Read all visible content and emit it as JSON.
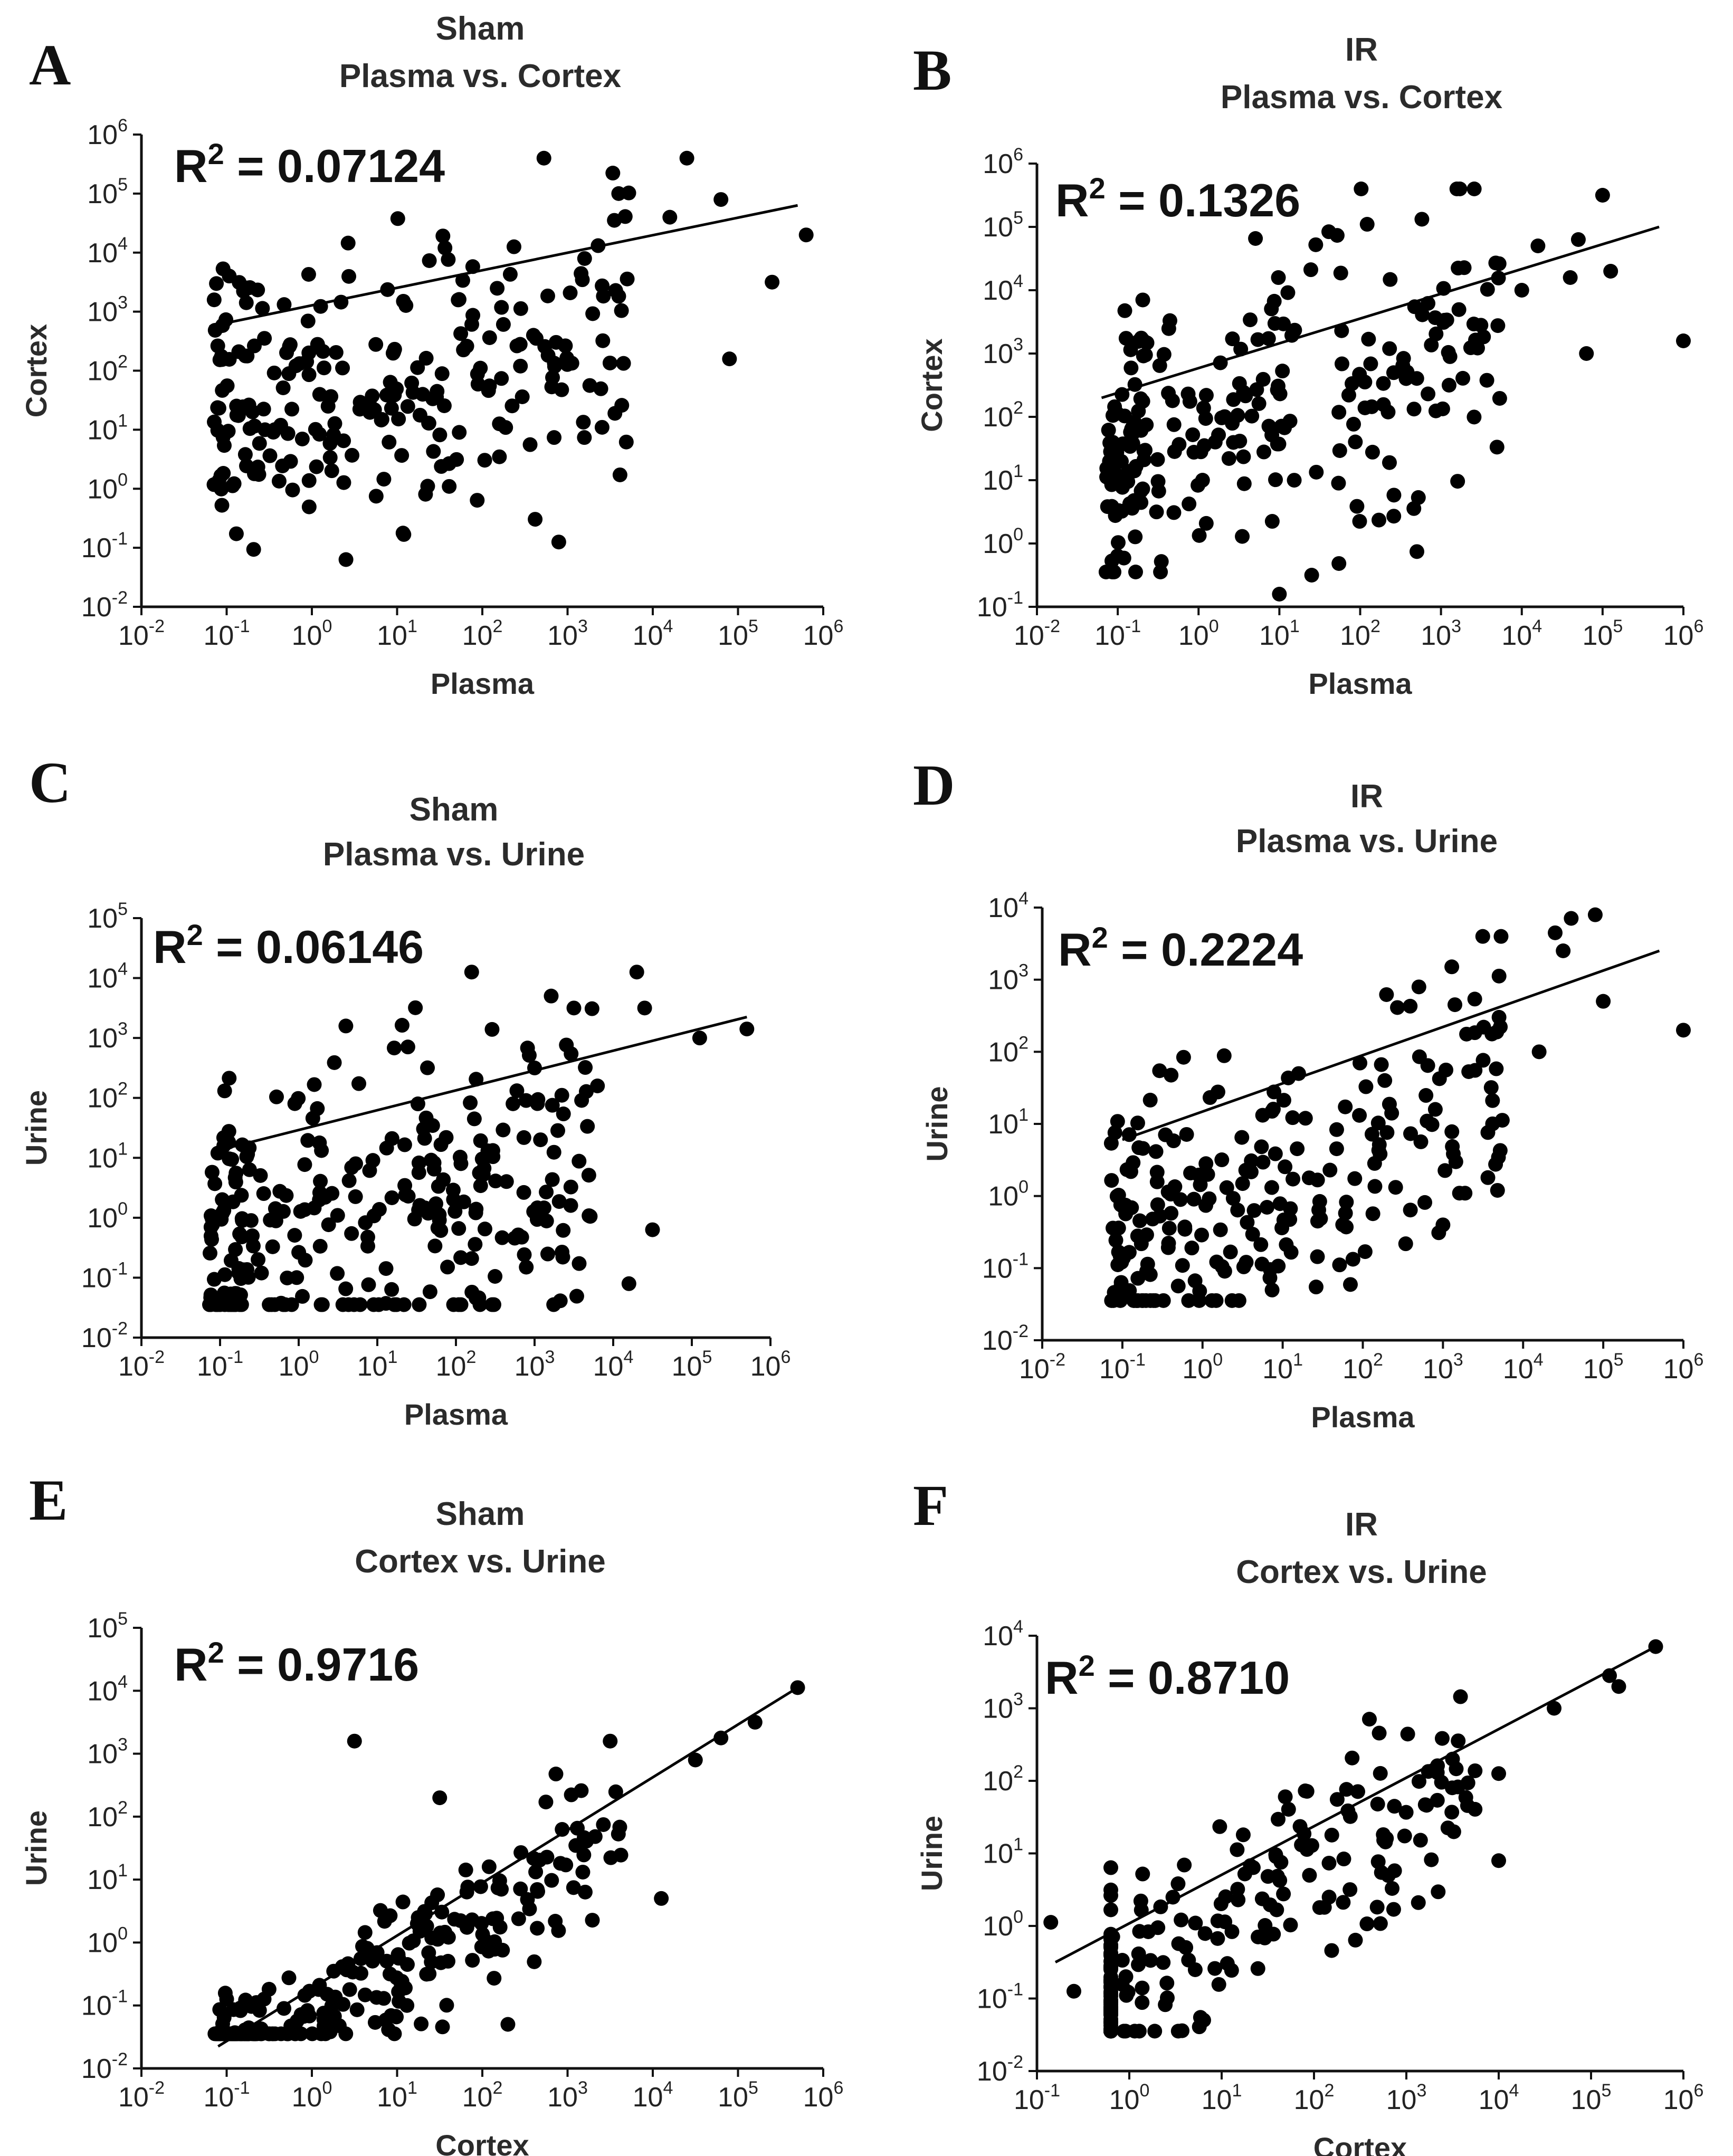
{
  "chart_data": [
    {
      "type": "scatter",
      "panel": "A",
      "title": [
        "Sham",
        "Plasma vs. Cortex"
      ],
      "xlabel": "Plasma",
      "ylabel": "Cortex",
      "r2_label": "R",
      "r2_value": "= 0.07124",
      "xlim_exp": [
        -2,
        6
      ],
      "ylim_exp": [
        -2,
        6
      ],
      "fit": {
        "x_exp": [
          -1.2,
          5.7
        ],
        "y_exp": [
          2.75,
          4.8
        ]
      },
      "seed": 11,
      "n_points": 240,
      "spread": 1.25,
      "y_offset": -1.5,
      "points_log": [
        [
          4.4,
          5.6
        ],
        [
          5.4,
          3.5
        ],
        [
          4.8,
          4.9
        ],
        [
          5.8,
          4.3
        ],
        [
          3.6,
          5.0
        ],
        [
          4.2,
          4.6
        ],
        [
          1.3,
          1.6
        ],
        [
          2.2,
          1.1
        ],
        [
          0.4,
          -1.2
        ],
        [
          2.6,
          2.6
        ],
        [
          3.2,
          3.9
        ],
        [
          4.9,
          2.2
        ]
      ]
    },
    {
      "type": "scatter",
      "panel": "B",
      "title": [
        "IR",
        "Plasma vs. Cortex"
      ],
      "xlabel": "Plasma",
      "ylabel": "Cortex",
      "r2_label": "R",
      "r2_value": "= 0.1326",
      "xlim_exp": [
        -2,
        6
      ],
      "ylim_exp": [
        -1,
        6
      ],
      "fit": {
        "x_exp": [
          -1.2,
          5.7
        ],
        "y_exp": [
          2.3,
          5.0
        ]
      },
      "seed": 23,
      "n_points": 240,
      "spread": 1.1,
      "y_offset": -1.0,
      "points_log": [
        [
          5.0,
          5.5
        ],
        [
          4.7,
          4.8
        ],
        [
          5.1,
          4.3
        ],
        [
          6.0,
          3.2
        ],
        [
          4.2,
          4.7
        ],
        [
          4.6,
          4.2
        ],
        [
          4.0,
          4.0
        ],
        [
          4.8,
          3.0
        ],
        [
          3.1,
          2.5
        ],
        [
          1.4,
          -0.5
        ],
        [
          1.0,
          -0.8
        ]
      ]
    },
    {
      "type": "scatter",
      "panel": "C",
      "title": [
        "Sham",
        "Plasma vs. Urine"
      ],
      "xlabel": "Plasma",
      "ylabel": "Urine",
      "r2_label": "R",
      "r2_value": "= 0.06146",
      "xlim_exp": [
        -2,
        6
      ],
      "ylim_exp": [
        -2,
        5
      ],
      "fit": {
        "x_exp": [
          -1.1,
          5.7
        ],
        "y_exp": [
          1.1,
          3.35
        ]
      },
      "seed": 37,
      "n_points": 280,
      "spread": 1.3,
      "y_offset": -1.8,
      "points_log": [
        [
          4.3,
          4.1
        ],
        [
          2.2,
          4.1
        ],
        [
          0.6,
          3.2
        ],
        [
          5.1,
          3.0
        ],
        [
          5.7,
          3.15
        ],
        [
          3.5,
          3.5
        ],
        [
          4.4,
          3.5
        ],
        [
          3.0,
          2.5
        ],
        [
          3.8,
          2.2
        ],
        [
          4.5,
          -0.2
        ],
        [
          4.2,
          -1.1
        ]
      ]
    },
    {
      "type": "scatter",
      "panel": "D",
      "title": [
        "IR",
        "Plasma vs. Urine"
      ],
      "xlabel": "Plasma",
      "ylabel": "Urine",
      "r2_label": "R",
      "r2_value": "= 0.2224",
      "xlim_exp": [
        -2,
        6
      ],
      "ylim_exp": [
        -2,
        4
      ],
      "fit": {
        "x_exp": [
          -1.0,
          5.7
        ],
        "y_exp": [
          0.78,
          3.4
        ]
      },
      "seed": 41,
      "n_points": 240,
      "spread": 1.0,
      "y_offset": -1.3,
      "points_log": [
        [
          4.6,
          3.85
        ],
        [
          4.4,
          3.65
        ],
        [
          4.5,
          3.4
        ],
        [
          4.9,
          3.9
        ],
        [
          3.7,
          3.05
        ],
        [
          5.0,
          2.7
        ],
        [
          6.0,
          2.3
        ],
        [
          2.7,
          2.9
        ],
        [
          4.2,
          2.0
        ],
        [
          3.0,
          -0.4
        ]
      ]
    },
    {
      "type": "scatter",
      "panel": "E",
      "title": [
        "Sham",
        "Cortex vs. Urine"
      ],
      "xlabel": "Cortex",
      "ylabel": "Urine",
      "r2_label": "R",
      "r2_value": "= 0.9716",
      "xlim_exp": [
        -2,
        6
      ],
      "ylim_exp": [
        -2,
        5
      ],
      "fit": {
        "x_exp": [
          -1.1,
          5.7
        ],
        "y_exp": [
          -1.65,
          4.05
        ]
      },
      "seed": 53,
      "n_points": 260,
      "spread": 0.55,
      "y_offset": -0.5,
      "points_log": [
        [
          5.7,
          4.05
        ],
        [
          5.2,
          3.5
        ],
        [
          4.8,
          3.25
        ],
        [
          4.5,
          2.9
        ],
        [
          3.5,
          3.2
        ],
        [
          1.5,
          2.3
        ],
        [
          0.5,
          3.2
        ],
        [
          4.1,
          0.7
        ],
        [
          -1.0,
          -0.9
        ],
        [
          2.3,
          -1.3
        ]
      ]
    },
    {
      "type": "scatter",
      "panel": "F",
      "title": [
        "IR",
        "Cortex vs. Urine"
      ],
      "xlabel": "Cortex",
      "ylabel": "Urine",
      "r2_label": "R",
      "r2_value": "= 0.8710",
      "xlim_exp": [
        -1,
        6
      ],
      "ylim_exp": [
        -2,
        4
      ],
      "fit": {
        "x_exp": [
          -0.8,
          5.7
        ],
        "y_exp": [
          -0.5,
          3.85
        ]
      },
      "seed": 67,
      "n_points": 240,
      "spread": 0.65,
      "y_offset": -0.7,
      "points_log": [
        [
          5.7,
          3.85
        ],
        [
          5.2,
          3.45
        ],
        [
          5.3,
          3.3
        ],
        [
          4.6,
          3.0
        ],
        [
          2.6,
          2.85
        ],
        [
          3.5,
          2.3
        ],
        [
          4.0,
          2.1
        ],
        [
          4.0,
          0.9
        ],
        [
          -0.85,
          0.05
        ],
        [
          -0.6,
          -0.9
        ]
      ]
    }
  ]
}
